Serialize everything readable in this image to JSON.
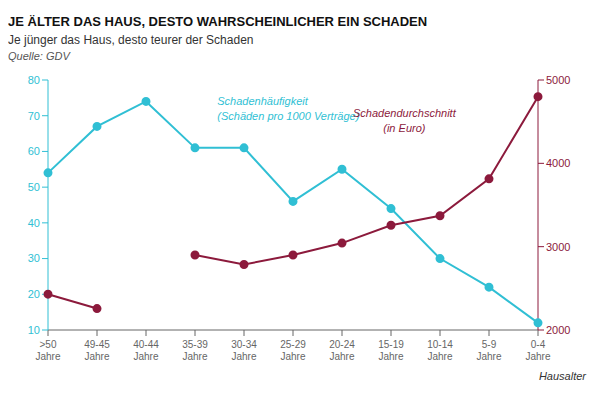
{
  "chart_data": {
    "type": "line",
    "title": "JE ÄLTER DAS HAUS, DESTO WAHRSCHEINLICHER EIN SCHADEN",
    "subtitle": "Je jünger das Haus, desto teurer der Schaden",
    "source": "Quelle: GDV",
    "xlabel": "Hausalter",
    "categories": [
      ">50\nJahre",
      "49-45\nJahre",
      "40-44\nJahre",
      "35-39\nJahre",
      "30-34\nJahre",
      "25-29\nJahre",
      "20-24\nJahre",
      "15-19\nJahre",
      "10-14\nJahre",
      "5-9\nJahre",
      "0-4\nJahre"
    ],
    "series": [
      {
        "color": "#30bfd4",
        "marker": "circle",
        "values": [
          54,
          67,
          74,
          61,
          61,
          46,
          55,
          44,
          30,
          22,
          12
        ]
      },
      {
        "color": "#8c1a3c",
        "marker": "circle",
        "axis": "y2",
        "values": [
          2430,
          2257,
          null,
          2900,
          2786,
          2900,
          3043,
          3257,
          3371,
          3814,
          4800
        ]
      }
    ],
    "annotations": [
      "Schadenhäufigkeit\n(Schäden pro 1000 Verträge)",
      "Schadendurchschnitt\n(in Euro)"
    ],
    "ylim": [
      10,
      80
    ],
    "yticks": [
      10,
      20,
      30,
      40,
      50,
      60,
      70,
      80
    ],
    "y2lim": [
      2000,
      5000
    ],
    "y2ticks": [
      2000,
      3000,
      4000,
      5000
    ],
    "grid": false
  }
}
